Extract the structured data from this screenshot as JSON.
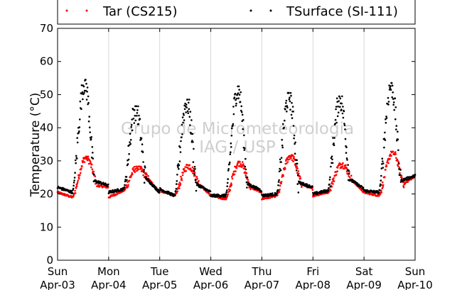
{
  "chart_data": {
    "type": "scatter",
    "xlabel": "",
    "ylabel": "Temperature (°C)",
    "ylim": [
      0,
      70
    ],
    "yticks": [
      "0",
      "10",
      "20",
      "30",
      "40",
      "50",
      "60",
      "70"
    ],
    "xlim_days": [
      0,
      7
    ],
    "xticks": [
      {
        "day": "Sun",
        "date": "Apr-03"
      },
      {
        "day": "Mon",
        "date": "Apr-04"
      },
      {
        "day": "Tue",
        "date": "Apr-05"
      },
      {
        "day": "Wed",
        "date": "Apr-06"
      },
      {
        "day": "Thu",
        "date": "Apr-07"
      },
      {
        "day": "Fri",
        "date": "Apr-08"
      },
      {
        "day": "Sat",
        "date": "Apr-09"
      },
      {
        "day": "Sun",
        "date": "Apr-10"
      }
    ],
    "grid": "vertical",
    "legend_position": "top",
    "watermark": [
      "Grupo de Micrometeorologia",
      "IAG / USP"
    ],
    "series": [
      {
        "name": "Tar (CS215)",
        "color": "#ff0000",
        "daily_min": [
          19,
          21,
          19.5,
          18.5,
          19.5,
          20.5,
          19.5
        ],
        "daily_max": [
          31,
          28,
          28.5,
          29.5,
          31.5,
          29,
          32.5
        ],
        "end_value": 24.5
      },
      {
        "name": "TSurface (SI-111)",
        "color": "#000000",
        "daily_min": [
          20.5,
          21.5,
          19.5,
          19.5,
          20,
          21,
          20.5
        ],
        "daily_max": [
          54,
          46,
          48,
          52,
          50,
          49,
          53
        ],
        "end_value": 24.5
      }
    ]
  }
}
